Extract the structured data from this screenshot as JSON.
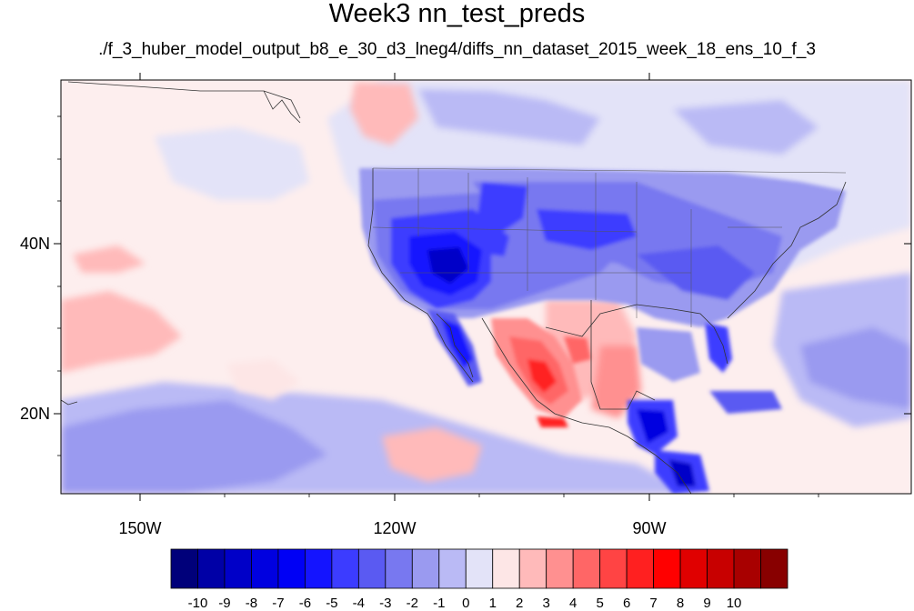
{
  "title": "Week3 nn_test_preds",
  "subtitle": "./f_3_huber_model_output_b8_e_30_d3_lneg4/diffs_nn_dataset_2015_week_18_ens_10_f_3",
  "axes": {
    "lat_labels": [
      "40N",
      "20N"
    ],
    "lon_labels": [
      "150W",
      "120W",
      "90W"
    ]
  },
  "colorbar": {
    "colors": [
      "#00007a",
      "#0000a6",
      "#0000c8",
      "#0000e0",
      "#0000f5",
      "#1414ff",
      "#3c3cff",
      "#5a5af2",
      "#7878f0",
      "#9a9af0",
      "#babaf5",
      "#e3e3f8",
      "#fde6e6",
      "#ffbaba",
      "#ff9090",
      "#ff6666",
      "#ff4444",
      "#ff2020",
      "#ff0000",
      "#e00000",
      "#c80000",
      "#a80000",
      "#880000"
    ],
    "labels": [
      "-10",
      "-9",
      "-8",
      "-7",
      "-6",
      "-5",
      "-4",
      "-3",
      "-2",
      "-1",
      "0",
      "1",
      "2",
      "3",
      "4",
      "5",
      "6",
      "7",
      "8",
      "9",
      "10"
    ]
  },
  "colors": {
    "ocean_background": "#fdeeee",
    "land_border": "#333333"
  }
}
